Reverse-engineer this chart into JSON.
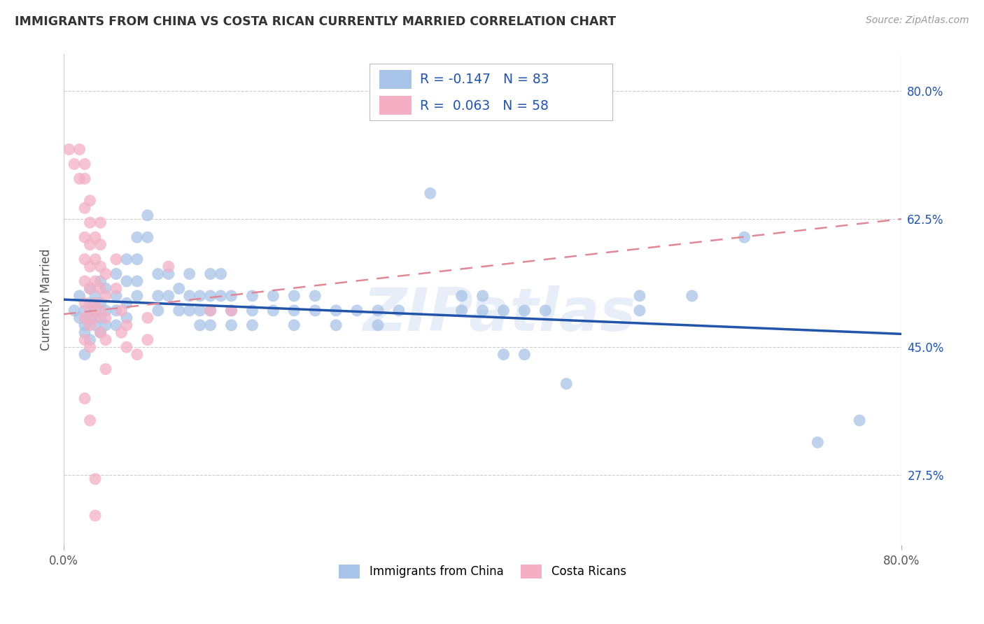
{
  "title": "IMMIGRANTS FROM CHINA VS COSTA RICAN CURRENTLY MARRIED CORRELATION CHART",
  "source": "Source: ZipAtlas.com",
  "ylabel": "Currently Married",
  "xlim": [
    0.0,
    0.8
  ],
  "ylim": [
    0.18,
    0.85
  ],
  "yticks": [
    0.275,
    0.45,
    0.625,
    0.8
  ],
  "ytick_labels": [
    "27.5%",
    "45.0%",
    "62.5%",
    "80.0%"
  ],
  "watermark": "ZIPatlas",
  "legend_blue_label": "Immigrants from China",
  "legend_pink_label": "Costa Ricans",
  "blue_color": "#a8c4e8",
  "pink_color": "#f4afc4",
  "trend_blue_color": "#2255aa",
  "trend_pink_color": "#e08898",
  "blue_scatter": [
    [
      0.01,
      0.5
    ],
    [
      0.015,
      0.49
    ],
    [
      0.015,
      0.52
    ],
    [
      0.02,
      0.5
    ],
    [
      0.02,
      0.48
    ],
    [
      0.02,
      0.47
    ],
    [
      0.02,
      0.44
    ],
    [
      0.025,
      0.51
    ],
    [
      0.025,
      0.49
    ],
    [
      0.025,
      0.53
    ],
    [
      0.025,
      0.46
    ],
    [
      0.03,
      0.52
    ],
    [
      0.03,
      0.5
    ],
    [
      0.03,
      0.48
    ],
    [
      0.035,
      0.54
    ],
    [
      0.035,
      0.51
    ],
    [
      0.035,
      0.49
    ],
    [
      0.035,
      0.47
    ],
    [
      0.04,
      0.53
    ],
    [
      0.04,
      0.5
    ],
    [
      0.04,
      0.48
    ],
    [
      0.05,
      0.55
    ],
    [
      0.05,
      0.52
    ],
    [
      0.05,
      0.5
    ],
    [
      0.05,
      0.48
    ],
    [
      0.06,
      0.57
    ],
    [
      0.06,
      0.54
    ],
    [
      0.06,
      0.51
    ],
    [
      0.06,
      0.49
    ],
    [
      0.07,
      0.6
    ],
    [
      0.07,
      0.57
    ],
    [
      0.07,
      0.54
    ],
    [
      0.07,
      0.52
    ],
    [
      0.08,
      0.63
    ],
    [
      0.08,
      0.6
    ],
    [
      0.09,
      0.55
    ],
    [
      0.09,
      0.52
    ],
    [
      0.09,
      0.5
    ],
    [
      0.1,
      0.55
    ],
    [
      0.1,
      0.52
    ],
    [
      0.11,
      0.53
    ],
    [
      0.11,
      0.5
    ],
    [
      0.12,
      0.55
    ],
    [
      0.12,
      0.52
    ],
    [
      0.12,
      0.5
    ],
    [
      0.13,
      0.52
    ],
    [
      0.13,
      0.5
    ],
    [
      0.13,
      0.48
    ],
    [
      0.14,
      0.55
    ],
    [
      0.14,
      0.52
    ],
    [
      0.14,
      0.5
    ],
    [
      0.14,
      0.48
    ],
    [
      0.15,
      0.55
    ],
    [
      0.15,
      0.52
    ],
    [
      0.16,
      0.52
    ],
    [
      0.16,
      0.5
    ],
    [
      0.16,
      0.48
    ],
    [
      0.18,
      0.52
    ],
    [
      0.18,
      0.5
    ],
    [
      0.18,
      0.48
    ],
    [
      0.2,
      0.52
    ],
    [
      0.2,
      0.5
    ],
    [
      0.22,
      0.52
    ],
    [
      0.22,
      0.5
    ],
    [
      0.22,
      0.48
    ],
    [
      0.24,
      0.52
    ],
    [
      0.24,
      0.5
    ],
    [
      0.26,
      0.5
    ],
    [
      0.26,
      0.48
    ],
    [
      0.28,
      0.5
    ],
    [
      0.3,
      0.5
    ],
    [
      0.3,
      0.48
    ],
    [
      0.32,
      0.5
    ],
    [
      0.35,
      0.66
    ],
    [
      0.38,
      0.52
    ],
    [
      0.38,
      0.5
    ],
    [
      0.4,
      0.52
    ],
    [
      0.4,
      0.5
    ],
    [
      0.42,
      0.5
    ],
    [
      0.42,
      0.44
    ],
    [
      0.44,
      0.5
    ],
    [
      0.44,
      0.44
    ],
    [
      0.46,
      0.5
    ],
    [
      0.48,
      0.4
    ],
    [
      0.55,
      0.52
    ],
    [
      0.55,
      0.5
    ],
    [
      0.6,
      0.52
    ],
    [
      0.65,
      0.6
    ],
    [
      0.72,
      0.32
    ],
    [
      0.76,
      0.35
    ]
  ],
  "pink_scatter": [
    [
      0.005,
      0.72
    ],
    [
      0.01,
      0.7
    ],
    [
      0.015,
      0.68
    ],
    [
      0.015,
      0.72
    ],
    [
      0.02,
      0.7
    ],
    [
      0.02,
      0.68
    ],
    [
      0.02,
      0.64
    ],
    [
      0.02,
      0.6
    ],
    [
      0.02,
      0.57
    ],
    [
      0.02,
      0.54
    ],
    [
      0.02,
      0.51
    ],
    [
      0.02,
      0.49
    ],
    [
      0.02,
      0.46
    ],
    [
      0.025,
      0.65
    ],
    [
      0.025,
      0.62
    ],
    [
      0.025,
      0.59
    ],
    [
      0.025,
      0.56
    ],
    [
      0.025,
      0.53
    ],
    [
      0.025,
      0.5
    ],
    [
      0.025,
      0.48
    ],
    [
      0.025,
      0.45
    ],
    [
      0.03,
      0.6
    ],
    [
      0.03,
      0.57
    ],
    [
      0.03,
      0.54
    ],
    [
      0.03,
      0.51
    ],
    [
      0.03,
      0.49
    ],
    [
      0.035,
      0.62
    ],
    [
      0.035,
      0.59
    ],
    [
      0.035,
      0.56
    ],
    [
      0.035,
      0.53
    ],
    [
      0.035,
      0.5
    ],
    [
      0.035,
      0.47
    ],
    [
      0.04,
      0.55
    ],
    [
      0.04,
      0.52
    ],
    [
      0.04,
      0.49
    ],
    [
      0.04,
      0.46
    ],
    [
      0.04,
      0.42
    ],
    [
      0.05,
      0.57
    ],
    [
      0.05,
      0.53
    ],
    [
      0.055,
      0.5
    ],
    [
      0.055,
      0.47
    ],
    [
      0.06,
      0.48
    ],
    [
      0.06,
      0.45
    ],
    [
      0.07,
      0.44
    ],
    [
      0.08,
      0.49
    ],
    [
      0.08,
      0.46
    ],
    [
      0.1,
      0.56
    ],
    [
      0.14,
      0.5
    ],
    [
      0.16,
      0.5
    ],
    [
      0.02,
      0.38
    ],
    [
      0.025,
      0.35
    ],
    [
      0.03,
      0.27
    ],
    [
      0.03,
      0.22
    ]
  ],
  "blue_trend": [
    0.0,
    0.8,
    0.515,
    0.468
  ],
  "pink_trend": [
    0.0,
    0.8,
    0.495,
    0.625
  ]
}
